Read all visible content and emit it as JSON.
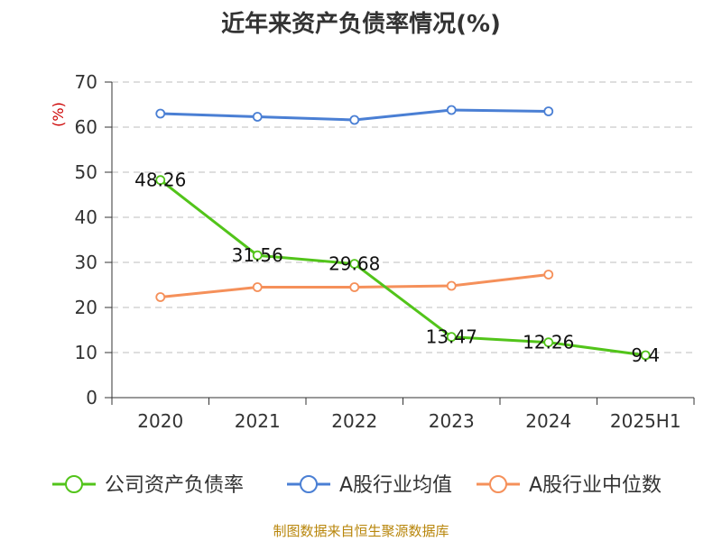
{
  "title": "近年来资产负债率情况(%)",
  "source_note": "制图数据来自恒生聚源数据库",
  "chart_data": {
    "type": "line",
    "title": "近年来资产负债率情况(%)",
    "ylabel": "(%)",
    "xlabel": "",
    "categories": [
      "2020",
      "2021",
      "2022",
      "2023",
      "2024",
      "2025H1"
    ],
    "y_ticks": [
      0,
      10,
      20,
      30,
      40,
      50,
      60,
      70
    ],
    "ylim": [
      0,
      70
    ],
    "grid": true,
    "legend_position": "bottom",
    "series": [
      {
        "name": "公司资产负债率",
        "color": "#52c41a",
        "values": [
          48.26,
          31.56,
          29.68,
          13.47,
          12.26,
          9.4
        ],
        "labels": [
          "48.26",
          "31.56",
          "29.68",
          "13.47",
          "12.26",
          "9.4"
        ],
        "show_labels": true
      },
      {
        "name": "A股行业均值",
        "color": "#4a7fd4",
        "values": [
          63.0,
          62.3,
          61.6,
          63.8,
          63.5,
          null
        ],
        "show_labels": false
      },
      {
        "name": "A股行业中位数",
        "color": "#f5905a",
        "values": [
          22.3,
          24.5,
          24.5,
          24.8,
          27.3,
          null
        ],
        "show_labels": false
      }
    ]
  }
}
